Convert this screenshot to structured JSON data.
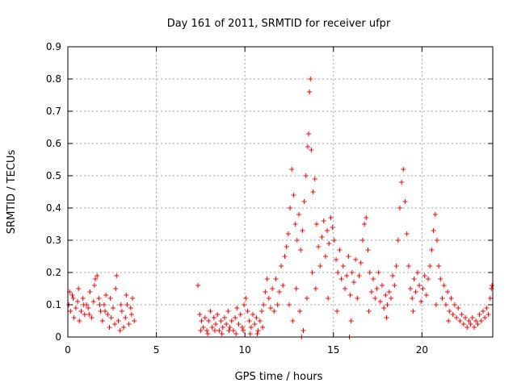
{
  "chart_data": {
    "type": "scatter",
    "title": "Day 161 of 2011, SRMTID for receiver ufpr",
    "xlabel": "GPS time / hours",
    "ylabel": "SRMTID / TECUs",
    "xlim": [
      0,
      24
    ],
    "ylim": [
      0,
      0.9
    ],
    "xticks": [
      0,
      5,
      10,
      15,
      20
    ],
    "xtick_labels": [
      "0",
      "5",
      "10",
      "15",
      "20"
    ],
    "yticks": [
      0,
      0.1,
      0.2,
      0.3,
      0.4,
      0.5,
      0.6,
      0.7,
      0.8,
      0.9
    ],
    "ytick_labels": [
      "0",
      "0.1",
      "0.2",
      "0.3",
      "0.4",
      "0.5",
      "0.6",
      "0.7",
      "0.8",
      "0.9"
    ],
    "grid": true,
    "marker": "+",
    "marker_color": "#ff0000",
    "series": [
      {
        "name": "SRMTID",
        "points": [
          [
            0.05,
            0.1
          ],
          [
            0.15,
            0.08
          ],
          [
            0.25,
            0.13
          ],
          [
            0.35,
            0.06
          ],
          [
            0.45,
            0.09
          ],
          [
            0.55,
            0.11
          ],
          [
            0.65,
            0.05
          ],
          [
            0.75,
            0.08
          ],
          [
            0.85,
            0.12
          ],
          [
            0.95,
            0.07
          ],
          [
            1.05,
            0.1
          ],
          [
            1.15,
            0.09
          ],
          [
            1.25,
            0.14
          ],
          [
            1.35,
            0.06
          ],
          [
            1.45,
            0.11
          ],
          [
            1.55,
            0.18
          ],
          [
            1.65,
            0.19
          ],
          [
            1.75,
            0.12
          ],
          [
            1.85,
            0.08
          ],
          [
            1.95,
            0.05
          ],
          [
            2.05,
            0.1
          ],
          [
            2.15,
            0.13
          ],
          [
            2.25,
            0.07
          ],
          [
            2.35,
            0.03
          ],
          [
            2.45,
            0.06
          ],
          [
            2.55,
            0.09
          ],
          [
            2.65,
            0.04
          ],
          [
            2.75,
            0.19
          ],
          [
            2.85,
            0.05
          ],
          [
            2.95,
            0.02
          ],
          [
            3.05,
            0.08
          ],
          [
            3.15,
            0.03
          ],
          [
            3.25,
            0.06
          ],
          [
            3.35,
            0.1
          ],
          [
            3.45,
            0.04
          ],
          [
            3.55,
            0.09
          ],
          [
            3.65,
            0.12
          ],
          [
            3.75,
            0.05
          ],
          [
            0.1,
            0.14
          ],
          [
            0.3,
            0.12
          ],
          [
            0.6,
            0.15
          ],
          [
            0.9,
            0.1
          ],
          [
            1.2,
            0.07
          ],
          [
            1.5,
            0.16
          ],
          [
            1.8,
            0.1
          ],
          [
            2.1,
            0.08
          ],
          [
            2.4,
            0.12
          ],
          [
            2.7,
            0.15
          ],
          [
            3.0,
            0.1
          ],
          [
            3.3,
            0.13
          ],
          [
            3.6,
            0.07
          ],
          [
            7.35,
            0.16
          ],
          [
            7.45,
            0.07
          ],
          [
            7.55,
            0.05
          ],
          [
            7.65,
            0.03
          ],
          [
            7.75,
            0.06
          ],
          [
            7.85,
            0.02
          ],
          [
            7.95,
            0.05
          ],
          [
            8.05,
            0.08
          ],
          [
            8.15,
            0.03
          ],
          [
            8.25,
            0.06
          ],
          [
            8.35,
            0.04
          ],
          [
            8.45,
            0.07
          ],
          [
            8.55,
            0.02
          ],
          [
            8.65,
            0.05
          ],
          [
            8.75,
            0.03
          ],
          [
            8.85,
            0.06
          ],
          [
            8.95,
            0.04
          ],
          [
            9.05,
            0.08
          ],
          [
            9.15,
            0.03
          ],
          [
            9.25,
            0.05
          ],
          [
            9.35,
            0.02
          ],
          [
            9.45,
            0.06
          ],
          [
            9.55,
            0.09
          ],
          [
            9.65,
            0.04
          ],
          [
            9.75,
            0.07
          ],
          [
            9.85,
            0.03
          ],
          [
            9.95,
            0.1
          ],
          [
            10.05,
            0.12
          ],
          [
            10.15,
            0.08
          ],
          [
            10.25,
            0.05
          ],
          [
            10.35,
            0.03
          ],
          [
            10.45,
            0.07
          ],
          [
            10.55,
            0.04
          ],
          [
            10.65,
            0.06
          ],
          [
            10.75,
            0.02
          ],
          [
            10.85,
            0.05
          ],
          [
            10.95,
            0.08
          ],
          [
            11.05,
            0.1
          ],
          [
            11.15,
            0.14
          ],
          [
            11.25,
            0.18
          ],
          [
            7.5,
            0.02
          ],
          [
            7.9,
            0.01
          ],
          [
            8.3,
            0.02
          ],
          [
            8.7,
            0.01
          ],
          [
            9.1,
            0.02
          ],
          [
            9.5,
            0.01
          ],
          [
            9.9,
            0.02
          ],
          [
            10.3,
            0.01
          ],
          [
            10.7,
            0.01
          ],
          [
            11.0,
            0.03
          ],
          [
            11.35,
            0.12
          ],
          [
            11.45,
            0.09
          ],
          [
            11.55,
            0.15
          ],
          [
            11.65,
            0.08
          ],
          [
            11.75,
            0.18
          ],
          [
            11.85,
            0.1
          ],
          [
            11.95,
            0.14
          ],
          [
            12.05,
            0.22
          ],
          [
            12.15,
            0.16
          ],
          [
            12.25,
            0.25
          ],
          [
            12.35,
            0.28
          ],
          [
            12.45,
            0.32
          ],
          [
            12.55,
            0.4
          ],
          [
            12.65,
            0.52
          ],
          [
            12.75,
            0.44
          ],
          [
            12.85,
            0.35
          ],
          [
            12.95,
            0.3
          ],
          [
            13.05,
            0.38
          ],
          [
            13.15,
            0.27
          ],
          [
            13.25,
            0.33
          ],
          [
            13.35,
            0.42
          ],
          [
            13.45,
            0.5
          ],
          [
            13.55,
            0.59
          ],
          [
            13.6,
            0.63
          ],
          [
            13.65,
            0.76
          ],
          [
            13.7,
            0.8
          ],
          [
            13.75,
            0.58
          ],
          [
            13.85,
            0.45
          ],
          [
            13.95,
            0.49
          ],
          [
            14.05,
            0.35
          ],
          [
            12.5,
            0.1
          ],
          [
            12.7,
            0.05
          ],
          [
            12.9,
            0.15
          ],
          [
            13.1,
            0.08
          ],
          [
            13.3,
            0.02
          ],
          [
            13.5,
            0.12
          ],
          [
            13.8,
            0.2
          ],
          [
            14.0,
            0.15
          ],
          [
            14.15,
            0.28
          ],
          [
            14.25,
            0.22
          ],
          [
            14.35,
            0.31
          ],
          [
            14.45,
            0.36
          ],
          [
            14.55,
            0.25
          ],
          [
            14.65,
            0.33
          ],
          [
            14.75,
            0.29
          ],
          [
            14.85,
            0.37
          ],
          [
            14.95,
            0.34
          ],
          [
            15.05,
            0.3
          ],
          [
            15.15,
            0.24
          ],
          [
            15.25,
            0.2
          ],
          [
            15.35,
            0.27
          ],
          [
            15.45,
            0.18
          ],
          [
            15.55,
            0.22
          ],
          [
            15.65,
            0.15
          ],
          [
            15.75,
            0.19
          ],
          [
            15.85,
            0.25
          ],
          [
            15.95,
            0.13
          ],
          [
            16.05,
            0.2
          ],
          [
            16.15,
            0.17
          ],
          [
            16.25,
            0.24
          ],
          [
            16.35,
            0.12
          ],
          [
            16.45,
            0.19
          ],
          [
            16.55,
            0.23
          ],
          [
            16.65,
            0.3
          ],
          [
            16.75,
            0.35
          ],
          [
            16.85,
            0.37
          ],
          [
            16.95,
            0.27
          ],
          [
            17.05,
            0.2
          ],
          [
            17.15,
            0.14
          ],
          [
            17.25,
            0.18
          ],
          [
            17.35,
            0.12
          ],
          [
            17.45,
            0.15
          ],
          [
            17.55,
            0.2
          ],
          [
            17.65,
            0.11
          ],
          [
            17.75,
            0.16
          ],
          [
            17.85,
            0.09
          ],
          [
            17.95,
            0.13
          ],
          [
            18.05,
            0.1
          ],
          [
            18.15,
            0.14
          ],
          [
            18.25,
            0.12
          ],
          [
            18.35,
            0.19
          ],
          [
            18.45,
            0.16
          ],
          [
            18.55,
            0.22
          ],
          [
            18.65,
            0.3
          ],
          [
            18.75,
            0.4
          ],
          [
            18.85,
            0.48
          ],
          [
            18.95,
            0.52
          ],
          [
            19.05,
            0.42
          ],
          [
            19.15,
            0.32
          ],
          [
            19.25,
            0.22
          ],
          [
            19.35,
            0.15
          ],
          [
            19.45,
            0.12
          ],
          [
            19.55,
            0.18
          ],
          [
            19.65,
            0.14
          ],
          [
            19.75,
            0.2
          ],
          [
            19.85,
            0.16
          ],
          [
            19.95,
            0.11
          ],
          [
            20.05,
            0.15
          ],
          [
            20.15,
            0.19
          ],
          [
            20.25,
            0.13
          ],
          [
            20.35,
            0.18
          ],
          [
            20.45,
            0.22
          ],
          [
            20.55,
            0.27
          ],
          [
            20.65,
            0.33
          ],
          [
            20.75,
            0.38
          ],
          [
            20.85,
            0.3
          ],
          [
            20.95,
            0.22
          ],
          [
            21.05,
            0.18
          ],
          [
            21.15,
            0.12
          ],
          [
            21.25,
            0.16
          ],
          [
            21.35,
            0.1
          ],
          [
            21.45,
            0.14
          ],
          [
            21.55,
            0.08
          ],
          [
            21.65,
            0.12
          ],
          [
            21.75,
            0.07
          ],
          [
            21.85,
            0.1
          ],
          [
            21.95,
            0.06
          ],
          [
            22.05,
            0.09
          ],
          [
            22.15,
            0.05
          ],
          [
            22.25,
            0.07
          ],
          [
            22.35,
            0.04
          ],
          [
            22.45,
            0.06
          ],
          [
            22.55,
            0.03
          ],
          [
            22.65,
            0.05
          ],
          [
            22.75,
            0.04
          ],
          [
            22.85,
            0.06
          ],
          [
            22.95,
            0.03
          ],
          [
            23.05,
            0.05
          ],
          [
            23.15,
            0.04
          ],
          [
            23.25,
            0.07
          ],
          [
            23.35,
            0.05
          ],
          [
            23.45,
            0.08
          ],
          [
            23.55,
            0.06
          ],
          [
            23.65,
            0.09
          ],
          [
            23.75,
            0.07
          ],
          [
            23.85,
            0.12
          ],
          [
            23.92,
            0.15
          ],
          [
            23.96,
            0.16
          ],
          [
            15.9,
            0.0
          ],
          [
            13.2,
            0.0
          ],
          [
            14.7,
            0.12
          ],
          [
            15.2,
            0.08
          ],
          [
            16.0,
            0.05
          ],
          [
            17.0,
            0.08
          ],
          [
            18.0,
            0.06
          ],
          [
            19.5,
            0.08
          ],
          [
            20.8,
            0.1
          ],
          [
            21.5,
            0.05
          ]
        ]
      }
    ]
  }
}
